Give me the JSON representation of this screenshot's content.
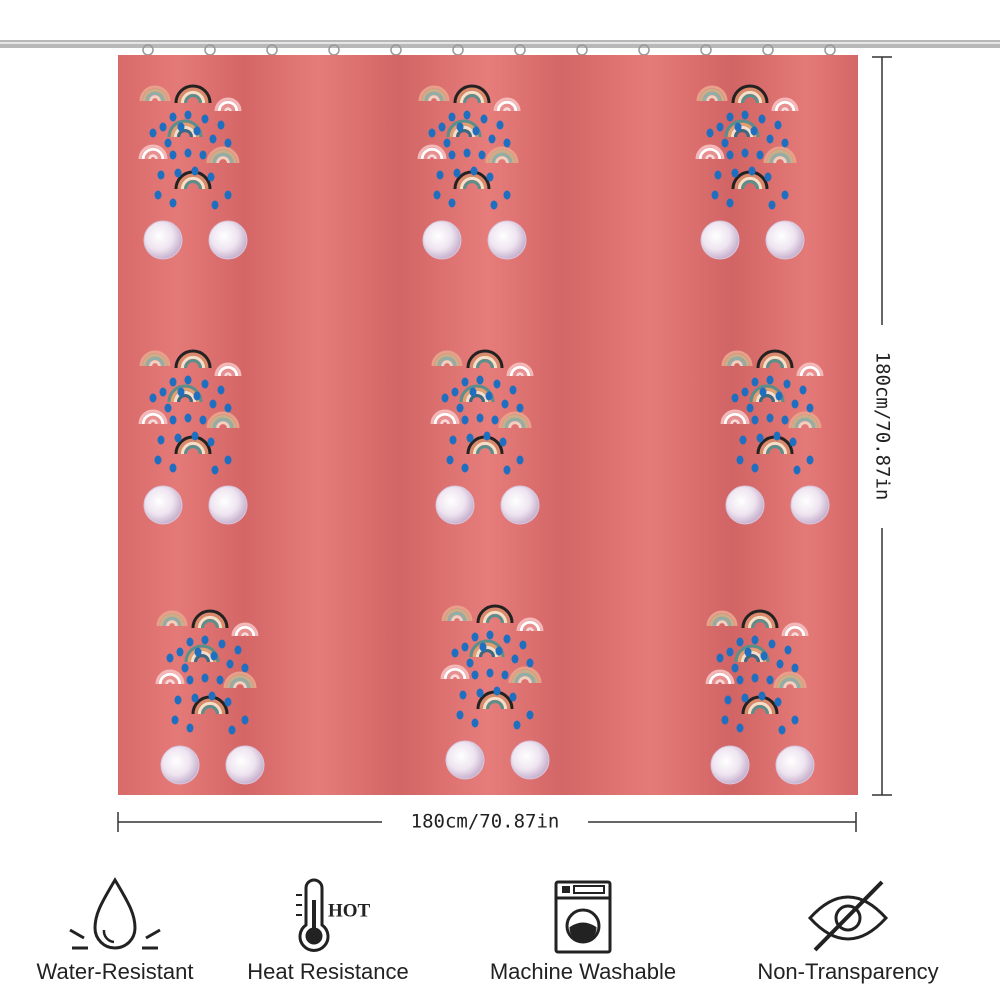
{
  "dimensions": {
    "width": "180cm/70.87in",
    "height": "180cm/70.87in"
  },
  "icon_text": {
    "hot": "HOT"
  },
  "features": [
    {
      "label": "Water-Resistant"
    },
    {
      "label": "Heat Resistance"
    },
    {
      "label": "Machine Washable"
    },
    {
      "label": "Non-Transparency"
    }
  ]
}
